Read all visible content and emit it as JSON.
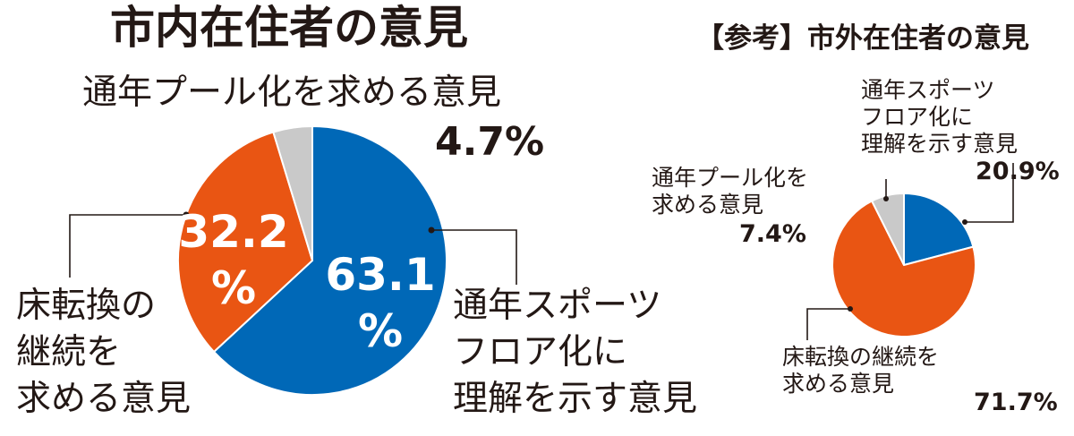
{
  "chart_data": [
    {
      "type": "pie",
      "title": "市内在住者の意見",
      "slices": [
        {
          "label": "通年スポーツフロア化に理解を示す意見",
          "lines": [
            "通年スポーツ",
            "フロア化に",
            "理解を示す意見"
          ],
          "value": 63.1,
          "display": "63.1",
          "unit": "%",
          "color": "#0068b7"
        },
        {
          "label": "床転換の継続を求める意見",
          "lines": [
            "床転換の",
            "継続を",
            "求める意見"
          ],
          "value": 32.2,
          "display": "32.2",
          "unit": "%",
          "color": "#e95513"
        },
        {
          "label": "通年プール化を求める意見",
          "lines": [
            "通年プール化を求める意見"
          ],
          "value": 4.7,
          "display": "4.7%",
          "color": "#c9c9c9"
        }
      ]
    },
    {
      "type": "pie",
      "title": "【参考】市外在住者の意見",
      "slices": [
        {
          "label": "通年スポーツフロア化に理解を示す意見",
          "lines": [
            "通年スポーツ",
            "フロア化に",
            "理解を示す意見"
          ],
          "value": 20.9,
          "display": "20.9%",
          "color": "#0068b7"
        },
        {
          "label": "床転換の継続を求める意見",
          "lines": [
            "床転換の継続を",
            "求める意見"
          ],
          "value": 71.7,
          "display": "71.7%",
          "color": "#e95513"
        },
        {
          "label": "通年プール化を求める意見",
          "lines": [
            "通年プール化を",
            "求める意見"
          ],
          "value": 7.4,
          "display": "7.4%",
          "color": "#c9c9c9"
        }
      ]
    }
  ]
}
